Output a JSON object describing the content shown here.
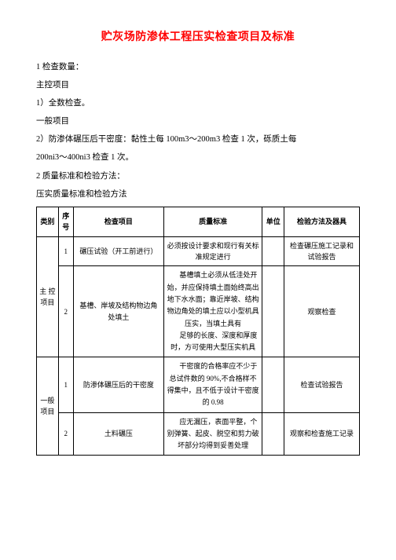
{
  "title": "贮灰场防渗体工程压实检查项目及标准",
  "paras": [
    "1 检查数量：",
    "主控项目",
    "1）全数检查。",
    "一般项目",
    "2）防渗体碾压后干密度：黏性土每 100m3～200m3 检查 1 次，砾质土每",
    "200ni3～400ni3 检查 1 次。",
    "2 质量标准和检验方法：",
    "压实质量标准和检验方法"
  ],
  "header": {
    "cat": "类别",
    "seq": "序号",
    "item": "检查项目",
    "std": "质量标准",
    "unit": "单位",
    "method": "检验方法及器具"
  },
  "catA": "主 控项目",
  "catB": "一般项目",
  "rows": {
    "r1": {
      "seq": "1",
      "item": "碾压试验（开工前进行）",
      "std": "必须按设计要求和现行有关标准规定进行",
      "method": "检查碾压施工记录和试验报告"
    },
    "r2": {
      "seq": "2",
      "item": "基槽、岸坡及结构物边角处填土",
      "std_p1": "基槽填土必须从低洼处开始，并应保持填土面始终高出地下水水面；靠近岸坡、结构物边角处的填土应以小型机具压实，当填土具有",
      "std_p2": "足够的长度、深度和厚度时，方可使用大型压实机具",
      "method": "观察检查"
    },
    "r3": {
      "seq": "1",
      "item": "防渗体碾压后的干密度",
      "std": "干密度的合格率应不少于总试件数的 90%,不合格样不得集中，且不低于设计干密度的 0.98",
      "method": "检查试验报告"
    },
    "r4": {
      "seq": "2",
      "item": "土料碾压",
      "std": "应无漏压，表面平整，个别弹簧、起皮、脱空和剪力破坏部分均得到妥善处理",
      "method": "观察和检查施工记录"
    }
  }
}
